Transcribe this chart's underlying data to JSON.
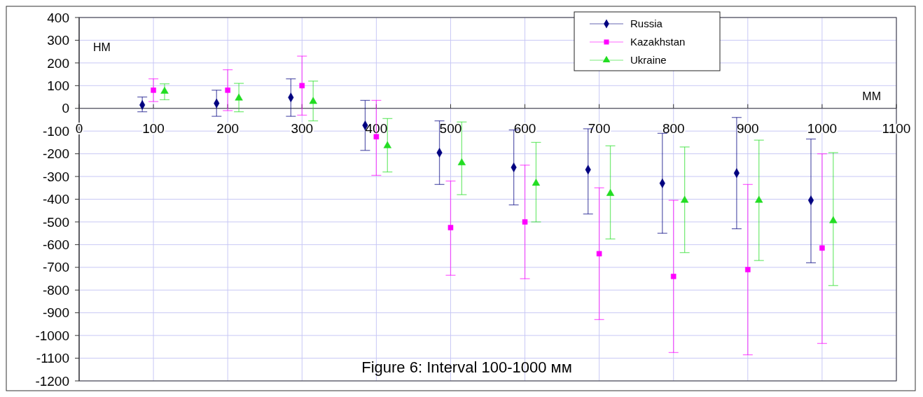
{
  "chart_data": {
    "type": "scatter",
    "annotations": [
      "Figure 6: Interval 100-1000 мм"
    ],
    "xlabel": "ММ",
    "ylabel": "НМ",
    "xlim": [
      0,
      1100
    ],
    "xticks": [
      0,
      100,
      200,
      300,
      400,
      500,
      600,
      700,
      800,
      900,
      1000,
      1100
    ],
    "ylim": [
      -1200,
      400
    ],
    "yticks": [
      -1200,
      -1100,
      -1000,
      -900,
      -800,
      -700,
      -600,
      -500,
      -400,
      -300,
      -200,
      -100,
      0,
      100,
      200,
      300,
      400
    ],
    "grid": true,
    "legend": "top right",
    "series": [
      {
        "name": "Russia",
        "color": "#000080",
        "marker": "diamond",
        "x": [
          85,
          185,
          285,
          385,
          485,
          585,
          685,
          785,
          885,
          985
        ],
        "values": [
          15,
          22,
          48,
          -75,
          -195,
          -260,
          -270,
          -330,
          -285,
          -405
        ],
        "errors": [
          [
            -15,
            50
          ],
          [
            -35,
            80
          ],
          [
            -35,
            130
          ],
          [
            -185,
            35
          ],
          [
            -335,
            -55
          ],
          [
            -425,
            -95
          ],
          [
            -465,
            -90
          ],
          [
            -550,
            -110
          ],
          [
            -530,
            -40
          ],
          [
            -680,
            -135
          ]
        ]
      },
      {
        "name": "Kazakhstan",
        "color": "#ff00ff",
        "marker": "square",
        "x": [
          100,
          200,
          300,
          400,
          500,
          600,
          700,
          800,
          900,
          1000
        ],
        "values": [
          80,
          80,
          100,
          -125,
          -525,
          -500,
          -640,
          -740,
          -710,
          -615
        ],
        "errors": [
          [
            30,
            130
          ],
          [
            -10,
            170
          ],
          [
            -30,
            230
          ],
          [
            -295,
            35
          ],
          [
            -735,
            -320
          ],
          [
            -750,
            -250
          ],
          [
            -930,
            -350
          ],
          [
            -1075,
            -405
          ],
          [
            -1085,
            -335
          ],
          [
            -1035,
            -200
          ]
        ]
      },
      {
        "name": "Ukraine",
        "color": "#22dd22",
        "marker": "triangle",
        "x": [
          115,
          215,
          315,
          415,
          515,
          615,
          715,
          815,
          915,
          1015
        ],
        "values": [
          75,
          45,
          30,
          -165,
          -240,
          -330,
          -375,
          -405,
          -405,
          -495
        ],
        "errors": [
          [
            38,
            108
          ],
          [
            -15,
            110
          ],
          [
            -55,
            120
          ],
          [
            -280,
            -45
          ],
          [
            -380,
            -60
          ],
          [
            -500,
            -150
          ],
          [
            -575,
            -165
          ],
          [
            -635,
            -170
          ],
          [
            -670,
            -140
          ],
          [
            -780,
            -195
          ]
        ]
      }
    ]
  }
}
